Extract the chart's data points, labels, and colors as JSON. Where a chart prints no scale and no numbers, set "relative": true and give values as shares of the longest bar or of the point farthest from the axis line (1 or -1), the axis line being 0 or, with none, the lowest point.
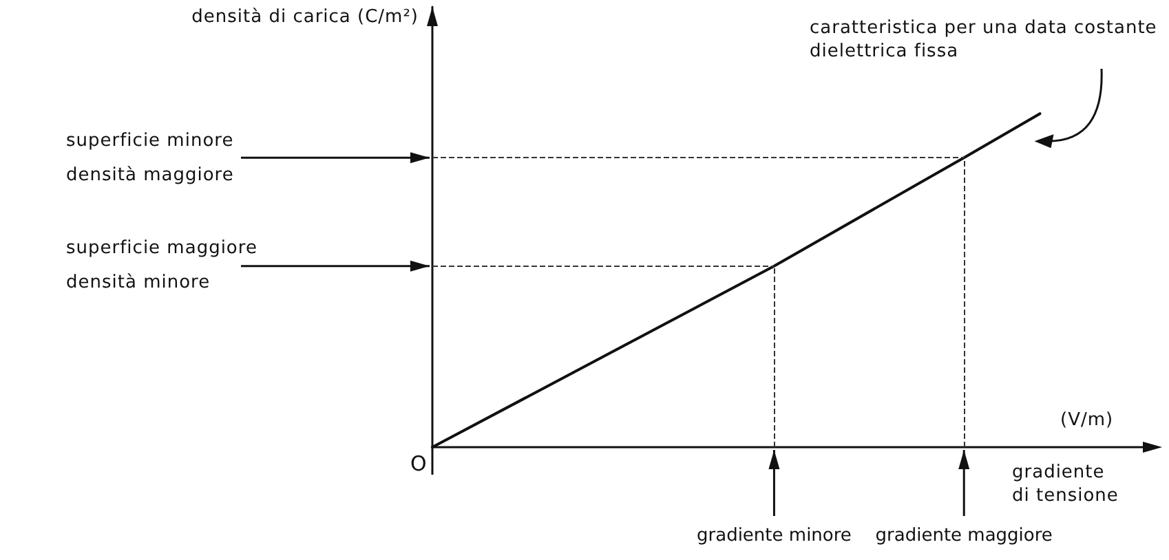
{
  "chart_data": {
    "type": "line",
    "relative": true,
    "ylabel": "densità di carica (C/m²)",
    "categories": [
      null,
      null,
      null,
      null,
      null,
      null,
      null,
      null,
      null,
      "gradiente minore",
      null,
      null,
      null,
      null,
      "gradiente maggiore",
      null,
      null,
      null,
      null,
      null
    ],
    "series": [
      {
        "color": "#111111",
        "values": [
          0,
          null,
          null,
          null,
          null,
          null,
          null,
          null,
          null,
          0.543,
          null,
          null,
          null,
          null,
          0.868,
          null,
          1,
          null,
          null,
          null
        ]
      }
    ],
    "ref_lines": [
      {
        "axis": "y",
        "value": 0.868,
        "label": "superficie minore\ndensità maggiore",
        "line_style": "dashed"
      },
      {
        "axis": "y",
        "value": 0.543,
        "label": "superficie maggiore\ndensità minore",
        "line_style": "dashed"
      },
      {
        "axis": "x",
        "value": "gradiente minore",
        "line_style": "dashed"
      },
      {
        "axis": "x",
        "value": "gradiente maggiore",
        "line_style": "dashed"
      }
    ],
    "annotations": [
      "(V/m)",
      "O",
      "gradiente\ndi tensione",
      "caratteristica per una data costante\ndielettrica fissa"
    ],
    "line_style": "solid"
  }
}
